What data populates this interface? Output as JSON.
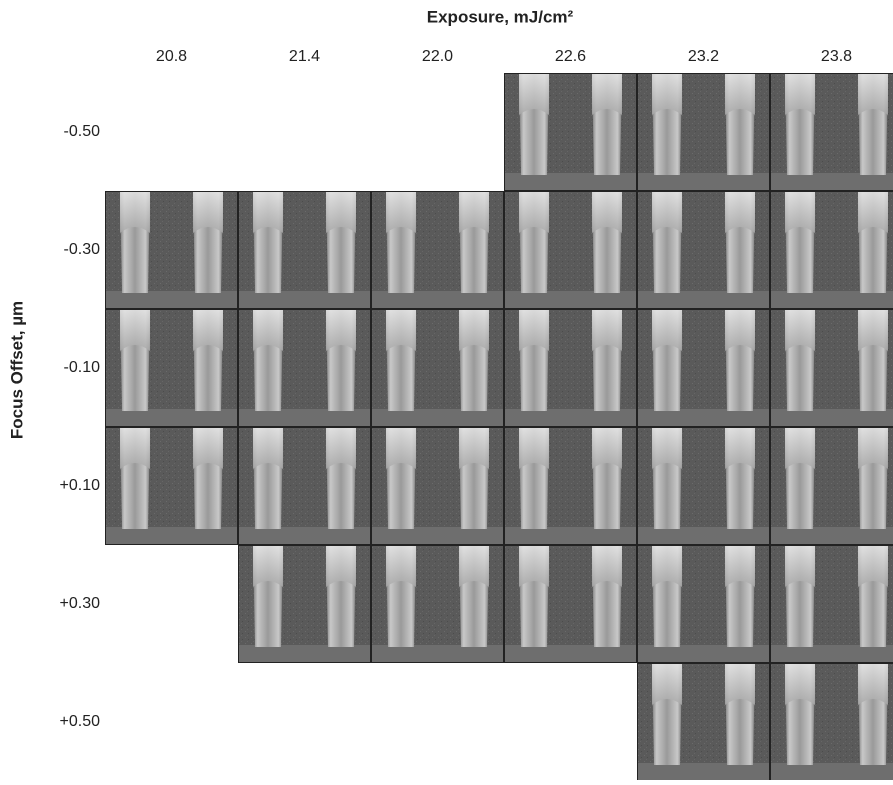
{
  "figure": {
    "x_title": "Exposure, mJ/cm²",
    "y_title": "Focus Offset, µm",
    "columns": [
      "20.8",
      "21.4",
      "22.0",
      "22.6",
      "23.2",
      "23.8"
    ],
    "rows": [
      "-0.50",
      "-0.30",
      "-0.10",
      "+0.10",
      "+0.30",
      "+0.50"
    ]
  }
}
